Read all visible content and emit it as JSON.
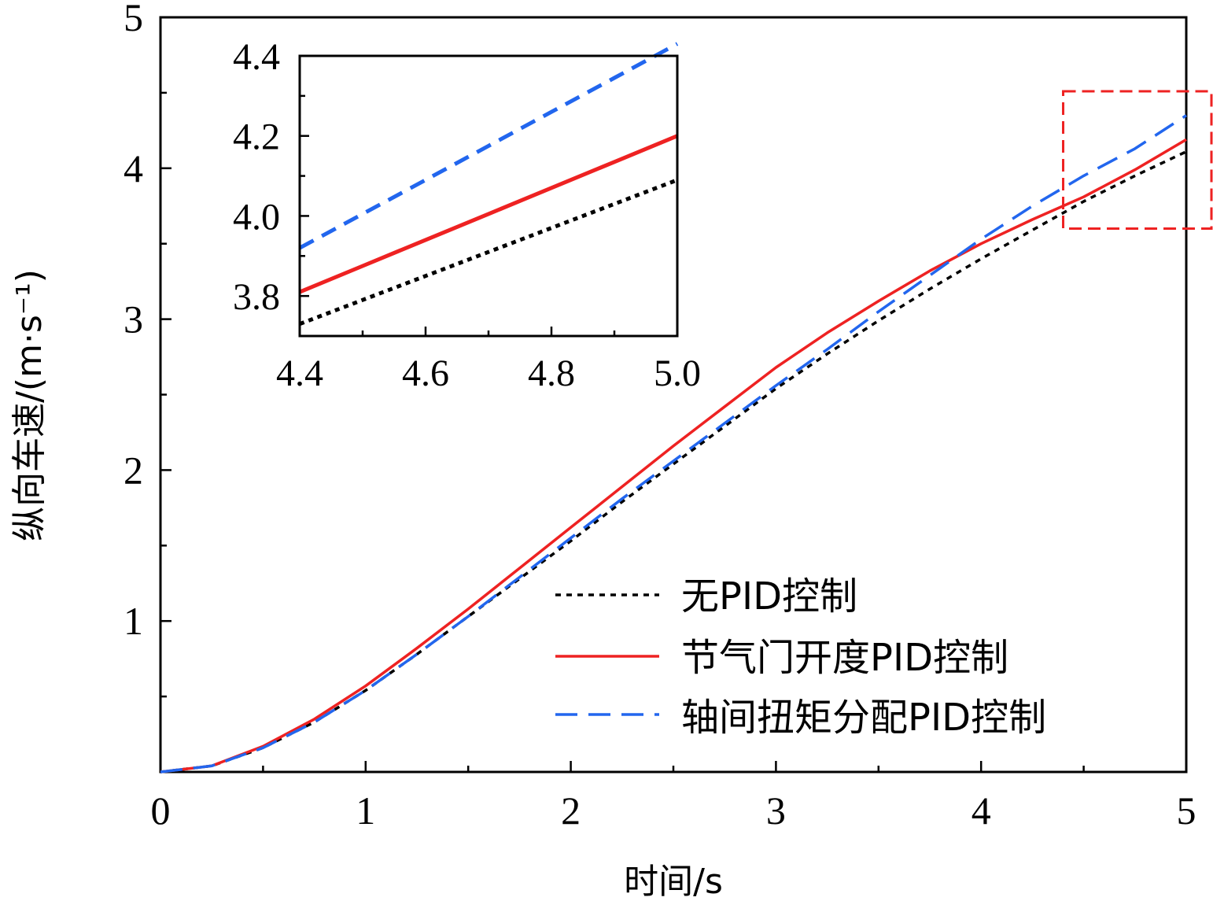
{
  "chart_data": [
    {
      "type": "line",
      "title": "",
      "xlabel": "时间/s",
      "ylabel": "纵向车速/(m·s⁻¹)",
      "xlim": [
        0,
        5
      ],
      "ylim": [
        0,
        5
      ],
      "xticks": [
        "0",
        "1",
        "2",
        "3",
        "4",
        "5"
      ],
      "yticks": [
        "1",
        "2",
        "3",
        "4",
        "5"
      ],
      "grid": false,
      "legend_position": "bottom-right",
      "x": [
        0,
        0.25,
        0.5,
        0.75,
        1.0,
        1.25,
        1.5,
        1.75,
        2.0,
        2.25,
        2.5,
        2.75,
        3.0,
        3.25,
        3.5,
        3.75,
        4.0,
        4.25,
        4.5,
        4.75,
        5.0
      ],
      "series": [
        {
          "name": "无PID控制",
          "color": "#000000",
          "style": "dotted",
          "values": [
            0,
            0.04,
            0.16,
            0.33,
            0.54,
            0.78,
            1.03,
            1.28,
            1.53,
            1.79,
            2.04,
            2.29,
            2.54,
            2.77,
            2.99,
            3.2,
            3.4,
            3.59,
            3.78,
            3.95,
            4.11
          ]
        },
        {
          "name": "节气门开度PID控制",
          "color": "#ee2222",
          "style": "solid",
          "values": [
            0,
            0.04,
            0.17,
            0.35,
            0.57,
            0.82,
            1.08,
            1.35,
            1.62,
            1.89,
            2.16,
            2.42,
            2.68,
            2.91,
            3.12,
            3.32,
            3.5,
            3.66,
            3.81,
            3.99,
            4.19
          ]
        },
        {
          "name": "轴间扭矩分配PID控制",
          "color": "#2266ee",
          "style": "dashed",
          "values": [
            0,
            0.04,
            0.16,
            0.33,
            0.54,
            0.78,
            1.03,
            1.29,
            1.55,
            1.81,
            2.06,
            2.31,
            2.56,
            2.8,
            3.05,
            3.29,
            3.53,
            3.75,
            3.95,
            4.13,
            4.35
          ]
        }
      ],
      "zoom_box_color": "#ee2222"
    },
    {
      "type": "line",
      "title": "",
      "xlim": [
        4.4,
        5.0
      ],
      "ylim": [
        3.7,
        4.4
      ],
      "xticks": [
        "4.4",
        "4.6",
        "4.8",
        "5.0"
      ],
      "yticks": [
        "3.8",
        "4.0",
        "4.2",
        "4.4"
      ],
      "grid": false,
      "x": [
        4.4,
        4.5,
        4.6,
        4.7,
        4.8,
        4.9,
        5.0
      ],
      "series": [
        {
          "name": "无PID控制",
          "color": "#000000",
          "style": "dotted",
          "values": [
            3.73,
            3.79,
            3.85,
            3.91,
            3.97,
            4.03,
            4.09
          ]
        },
        {
          "name": "节气门开度PID控制",
          "color": "#ee2222",
          "style": "solid",
          "values": [
            3.81,
            3.875,
            3.94,
            4.005,
            4.07,
            4.135,
            4.2
          ]
        },
        {
          "name": "轴间扭矩分配PID控制",
          "color": "#2266ee",
          "style": "dashed",
          "values": [
            3.92,
            4.005,
            4.09,
            4.175,
            4.26,
            4.345,
            4.43
          ]
        }
      ]
    }
  ]
}
